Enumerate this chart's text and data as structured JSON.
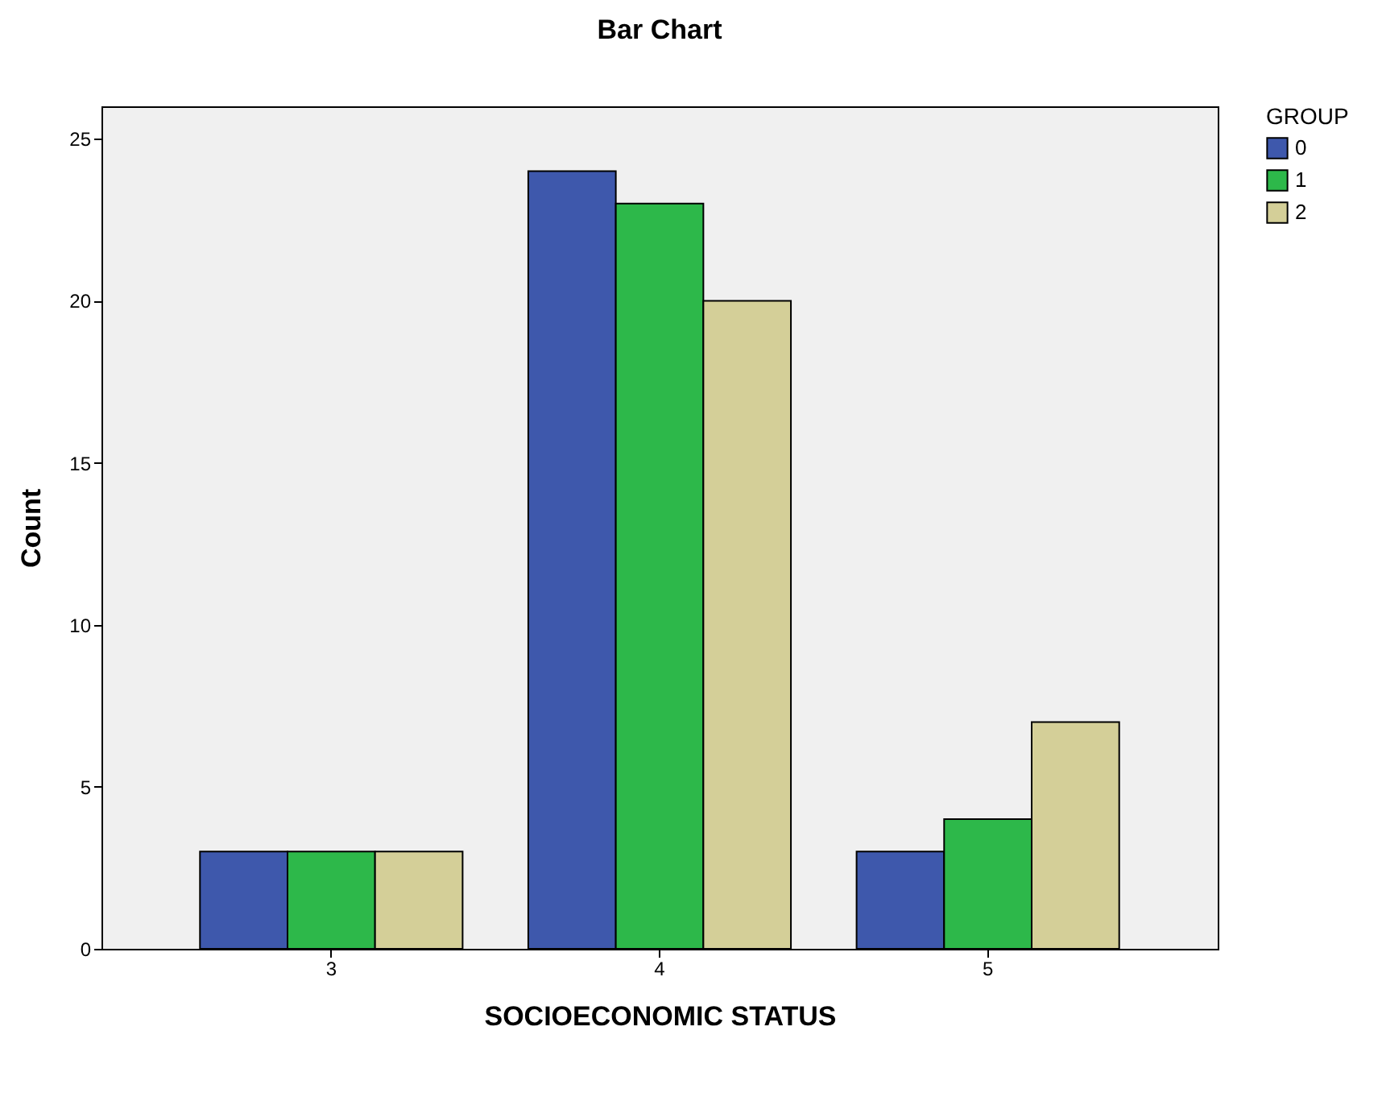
{
  "chart_data": {
    "type": "bar",
    "title": "Bar Chart",
    "xlabel": "SOCIOECONOMIC STATUS",
    "ylabel": "Count",
    "legend_title": "GROUP",
    "categories": [
      "3",
      "4",
      "5"
    ],
    "series": [
      {
        "name": "0",
        "color": "#3e58ac",
        "values": [
          3,
          24,
          3
        ]
      },
      {
        "name": "1",
        "color": "#2db84a",
        "values": [
          3,
          23,
          4
        ]
      },
      {
        "name": "2",
        "color": "#d4cf98",
        "values": [
          3,
          20,
          7
        ]
      }
    ],
    "ylim": [
      0,
      26
    ],
    "yticks": [
      0,
      5,
      10,
      15,
      20,
      25
    ],
    "grid": false,
    "legend": "top right"
  }
}
